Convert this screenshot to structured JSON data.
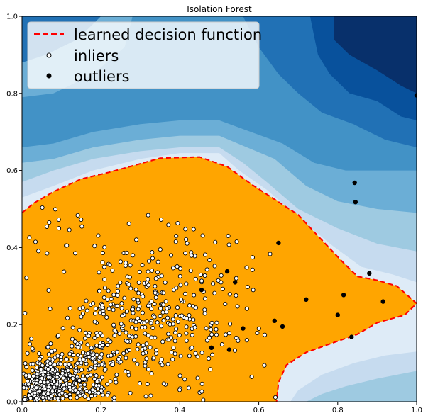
{
  "chart_data": {
    "type": "scatter",
    "title": "Isolation Forest",
    "xlabel": "",
    "ylabel": "",
    "xlim": [
      0,
      1
    ],
    "ylim": [
      0,
      1
    ],
    "xticks": [
      "0.0",
      "0.2",
      "0.4",
      "0.6",
      "0.8",
      "1.0"
    ],
    "yticks": [
      "0.0",
      "0.2",
      "0.4",
      "0.6",
      "0.8",
      "1.0"
    ],
    "grid": false,
    "legend": {
      "placement": "top-left",
      "entries": [
        {
          "label": "learned decision function",
          "kind": "line",
          "color": "#ff0000"
        },
        {
          "label": "inliers",
          "kind": "marker",
          "color": "#ffffff"
        },
        {
          "label": "outliers",
          "kind": "marker",
          "color": "#000000"
        }
      ]
    },
    "colors": {
      "decision_region": "#ffa500",
      "decision_boundary": "#ff0000",
      "contour_levels": [
        "#08306b",
        "#08519c",
        "#2171b5",
        "#4292c6",
        "#6baed6",
        "#9ecae1",
        "#c6dbef",
        "#deebf7",
        "#f7fbff"
      ]
    },
    "decision_boundary": [
      [
        0.0,
        0.49
      ],
      [
        0.03,
        0.515
      ],
      [
        0.08,
        0.545
      ],
      [
        0.15,
        0.578
      ],
      [
        0.22,
        0.595
      ],
      [
        0.28,
        0.612
      ],
      [
        0.35,
        0.632
      ],
      [
        0.45,
        0.635
      ],
      [
        0.52,
        0.61
      ],
      [
        0.58,
        0.565
      ],
      [
        0.64,
        0.525
      ],
      [
        0.7,
        0.485
      ],
      [
        0.75,
        0.43
      ],
      [
        0.81,
        0.365
      ],
      [
        0.85,
        0.325
      ],
      [
        0.9,
        0.315
      ],
      [
        0.95,
        0.3
      ],
      [
        1.0,
        0.255
      ],
      [
        0.97,
        0.225
      ],
      [
        0.9,
        0.205
      ],
      [
        0.85,
        0.175
      ],
      [
        0.78,
        0.15
      ],
      [
        0.72,
        0.128
      ],
      [
        0.67,
        0.095
      ],
      [
        0.65,
        0.05
      ],
      [
        0.645,
        0.0
      ],
      [
        0.0,
        0.0
      ]
    ],
    "inlier_model": {
      "count": 1000,
      "distribution": "dense near origin, spreading toward (0.65, 0.45)"
    },
    "outliers": [
      {
        "x": 1.0,
        "y": 0.795
      },
      {
        "x": 0.843,
        "y": 0.568
      },
      {
        "x": 0.845,
        "y": 0.518
      },
      {
        "x": 0.65,
        "y": 0.412
      },
      {
        "x": 0.88,
        "y": 0.333
      },
      {
        "x": 0.54,
        "y": 0.31
      },
      {
        "x": 0.52,
        "y": 0.338
      },
      {
        "x": 0.815,
        "y": 0.277
      },
      {
        "x": 0.915,
        "y": 0.26
      },
      {
        "x": 0.72,
        "y": 0.265
      },
      {
        "x": 0.8,
        "y": 0.225
      },
      {
        "x": 0.64,
        "y": 0.21
      },
      {
        "x": 0.56,
        "y": 0.19
      },
      {
        "x": 0.66,
        "y": 0.195
      },
      {
        "x": 0.835,
        "y": 0.168
      },
      {
        "x": 0.48,
        "y": 0.14
      },
      {
        "x": 0.525,
        "y": 0.135
      },
      {
        "x": 0.455,
        "y": 0.29
      }
    ]
  }
}
